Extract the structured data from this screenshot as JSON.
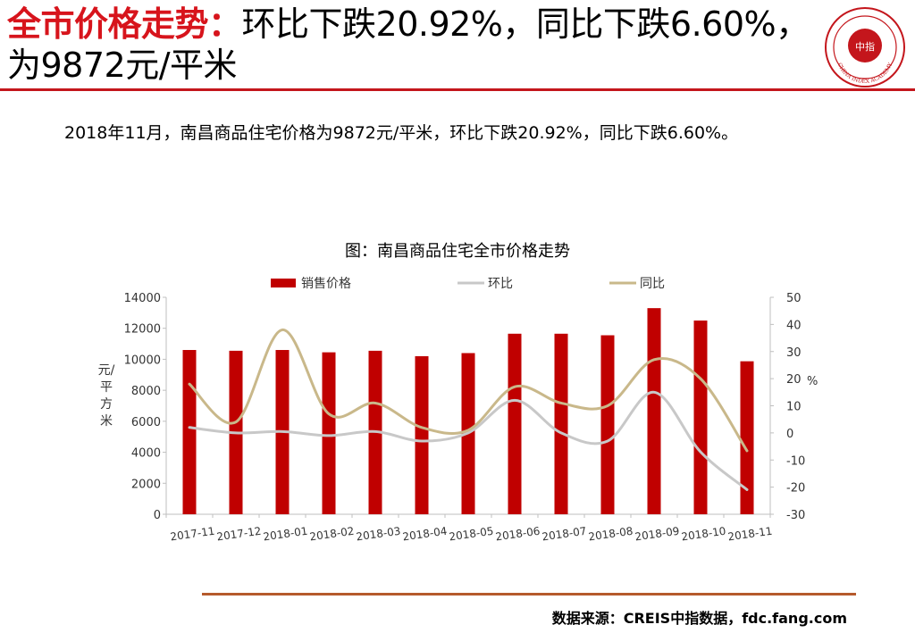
{
  "header": {
    "title_lead": "全市价格走势：",
    "title_rest": "环比下跌20.92%，同比下跌6.60%，为9872元/平米",
    "logo_text": "中指",
    "logo_ring_text": "CHINA INDEX ACADEMY",
    "logo_color": "#c4161c"
  },
  "summary": "2018年11月，南昌商品住宅价格为9872元/平米，环比下跌20.92%，同比下跌6.60%。",
  "chart_data": {
    "type": "bar",
    "title": "图：南昌商品住宅全市价格走势",
    "categories": [
      "2017-11",
      "2017-12",
      "2018-01",
      "2018-02",
      "2018-03",
      "2018-04",
      "2018-05",
      "2018-06",
      "2018-07",
      "2018-08",
      "2018-09",
      "2018-10",
      "2018-11"
    ],
    "series": [
      {
        "name": "销售价格",
        "type": "bar",
        "axis": "left",
        "color": "#c00000",
        "values": [
          10600,
          10550,
          10600,
          10450,
          10550,
          10200,
          10400,
          11650,
          11650,
          11550,
          13300,
          12500,
          9872
        ]
      },
      {
        "name": "环比",
        "type": "line",
        "axis": "right",
        "color": "#c8c8c8",
        "values": [
          2,
          0,
          0.5,
          -1,
          0.5,
          -3,
          0,
          12,
          0,
          -3,
          15,
          -7,
          -20.92
        ]
      },
      {
        "name": "同比",
        "type": "line",
        "axis": "right",
        "color": "#c9b88a",
        "values": [
          18,
          4,
          38,
          7,
          11,
          2,
          1,
          17,
          11,
          10,
          27,
          20,
          -6.6
        ]
      }
    ],
    "ylabel_left": "元/平方米",
    "ylabel_right": "%",
    "ylim_left": [
      0,
      14000
    ],
    "ylim_right": [
      -30,
      50
    ],
    "yticks_left": [
      0,
      2000,
      4000,
      6000,
      8000,
      10000,
      12000,
      14000
    ],
    "yticks_right": [
      -30,
      -20,
      -10,
      0,
      10,
      20,
      30,
      40,
      50
    ],
    "legend_position": "top",
    "grid": false
  },
  "footer": {
    "source": "数据来源：CREIS中指数据，fdc.fang.com"
  }
}
